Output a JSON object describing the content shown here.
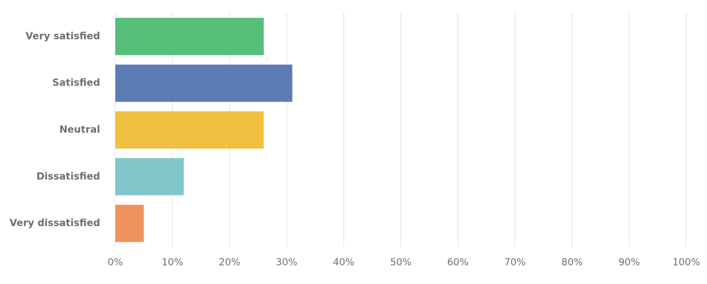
{
  "chart_data": {
    "type": "bar",
    "orientation": "horizontal",
    "categories": [
      "Very satisfied",
      "Satisfied",
      "Neutral",
      "Dissatisfied",
      "Very dissatisfied"
    ],
    "values": [
      26,
      31,
      26,
      12,
      5
    ],
    "colors": [
      "#57be78",
      "#5b7bb3",
      "#f0c040",
      "#82c6c9",
      "#f0935e"
    ],
    "xlim": [
      0,
      100
    ],
    "xticks": [
      {
        "value": 0,
        "label": "0%"
      },
      {
        "value": 10,
        "label": "10%"
      },
      {
        "value": 20,
        "label": "20%"
      },
      {
        "value": 30,
        "label": "30%"
      },
      {
        "value": 40,
        "label": "40%"
      },
      {
        "value": 50,
        "label": "50%"
      },
      {
        "value": 60,
        "label": "60%"
      },
      {
        "value": 70,
        "label": "70%"
      },
      {
        "value": 80,
        "label": "80%"
      },
      {
        "value": 90,
        "label": "90%"
      },
      {
        "value": 100,
        "label": "100%"
      }
    ],
    "grid": true
  }
}
